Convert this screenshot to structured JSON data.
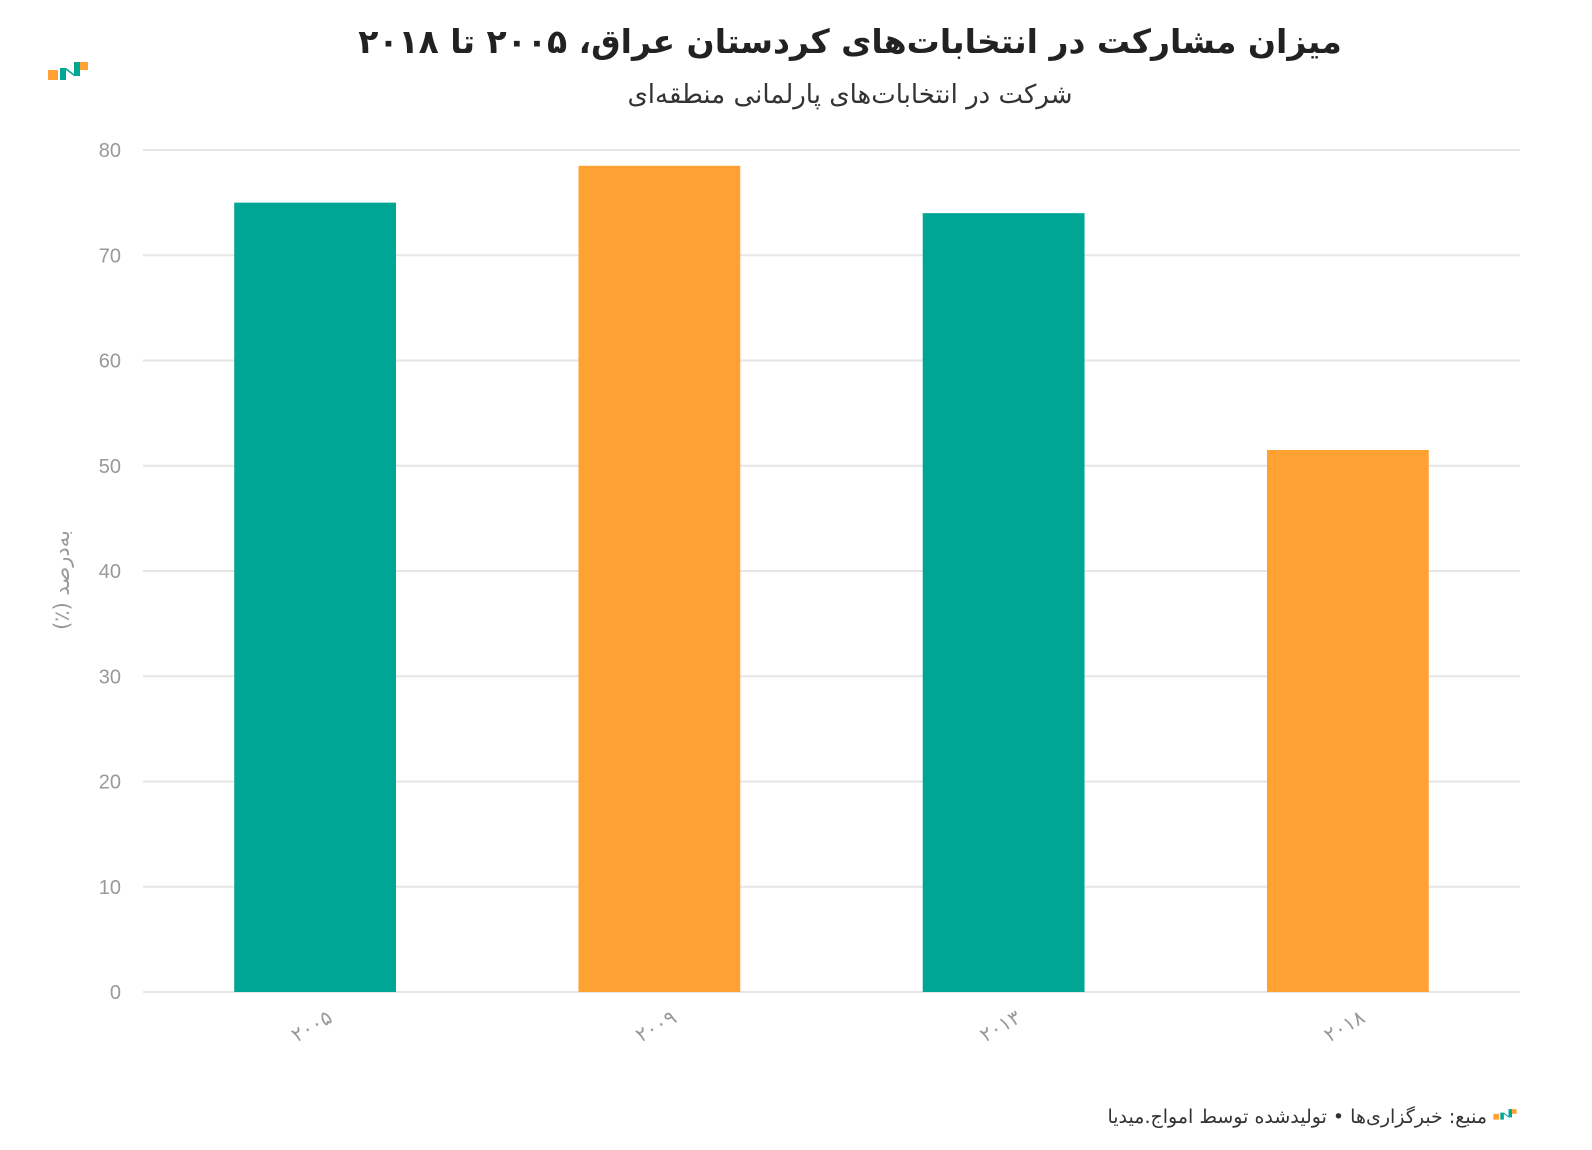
{
  "colors": {
    "teal": "#00A694",
    "orange": "#FFA233",
    "grid": "#E6E6E6",
    "tick": "#999999"
  },
  "logo_icon": "amwaj-media-logo-icon",
  "footer": {
    "text": "منبع: خبرگزاری‌ها • تولیدشده توسط امواج.میدیا"
  },
  "chart_data": {
    "type": "bar",
    "title": "میزان مشارکت در انتخابات‌های کردستان عراق، ۲۰۰۵ تا ۲۰۱۸",
    "subtitle": "شرکت در انتخابات‌های پارلمانی منطقه‌ای",
    "ylabel": "به‌درصد (٪)",
    "xlabel": "",
    "categories": [
      "۲۰۰۵",
      "۲۰۰۹",
      "۲۰۱۳",
      "۲۰۱۸"
    ],
    "values": [
      75,
      78.5,
      74,
      51.5
    ],
    "bar_colors": [
      "#00A694",
      "#FFA233",
      "#00A694",
      "#FFA233"
    ],
    "ylim": [
      0,
      80
    ],
    "yticks": [
      0,
      10,
      20,
      30,
      40,
      50,
      60,
      70,
      80
    ],
    "grid": true,
    "legend": false
  }
}
